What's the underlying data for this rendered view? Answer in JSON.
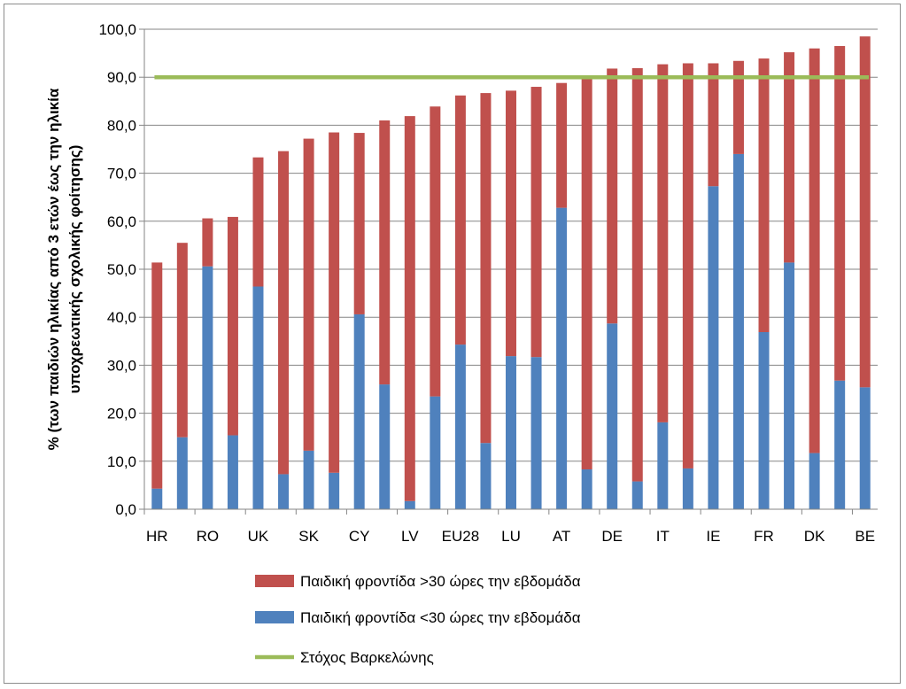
{
  "chart_data": {
    "type": "bar",
    "stacked": true,
    "categories": [
      "HR",
      "",
      "RO",
      "",
      "UK",
      "",
      "SK",
      "",
      "CY",
      "",
      "LV",
      "",
      "EU28",
      "",
      "LU",
      "",
      "AT",
      "",
      "DE",
      "",
      "IT",
      "",
      "IE",
      "",
      "FR",
      "",
      "DK",
      "",
      "BE"
    ],
    "series": [
      {
        "name": "Παιδική φροντίδα <30 ώρες την εβδομάδα",
        "color": "#4f81bd",
        "values": [
          4.3,
          15.0,
          50.6,
          15.4,
          46.4,
          7.3,
          12.2,
          7.6,
          40.6,
          26.0,
          1.7,
          23.5,
          34.3,
          13.8,
          31.9,
          31.7,
          62.8,
          8.3,
          38.7,
          5.8,
          18.1,
          8.5,
          67.3,
          74.0,
          36.9,
          51.4,
          11.7,
          26.8,
          25.4
        ]
      },
      {
        "name": "Παιδική φροντίδα >30 ώρες την εβδομάδα",
        "color": "#c0504d",
        "values": [
          47.1,
          40.5,
          10.0,
          45.5,
          26.9,
          67.3,
          65.0,
          70.9,
          37.8,
          55.0,
          80.2,
          60.4,
          51.9,
          72.9,
          55.3,
          56.3,
          26.0,
          81.7,
          53.1,
          86.1,
          74.6,
          84.4,
          25.6,
          19.4,
          57.0,
          43.8,
          84.3,
          69.7,
          73.1
        ]
      }
    ],
    "target": {
      "name": "Στόχος Βαρκελώνης",
      "value": 90.0,
      "color": "#9bbb59"
    },
    "ylabel_line1": "% (των παιδιών ηλικίας από 3 ετών έως την ηλικία",
    "ylabel_line2": "υποχρεωτικής σχολικής φοίτησης)",
    "ylim": [
      0,
      100
    ],
    "yticks": [
      "0,0",
      "10,0",
      "20,0",
      "30,0",
      "40,0",
      "50,0",
      "60,0",
      "70,0",
      "80,0",
      "90,0",
      "100,0"
    ],
    "legend_order": [
      "Παιδική φροντίδα >30 ώρες την εβδομάδα",
      "Παιδική φροντίδα <30 ώρες την εβδομάδα",
      "Στόχος Βαρκελώνης"
    ],
    "legend_position": "bottom",
    "grid": true
  }
}
